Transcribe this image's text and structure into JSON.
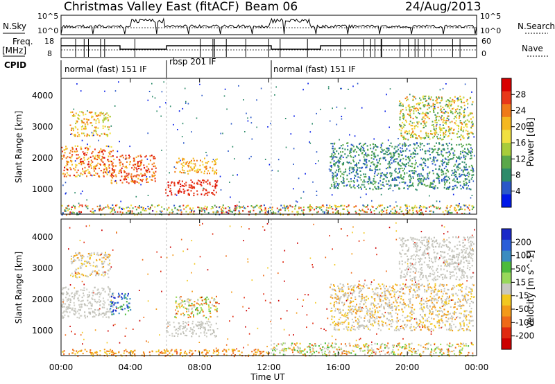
{
  "header": {
    "title": "Christmas Valley East (fitACF)",
    "beam": "Beam 06",
    "date": "24/Aug/2013"
  },
  "strip_labels": {
    "nsky": "N.Sky",
    "freq_line1": "Freq.",
    "freq_line2": "[MHz]",
    "cpid": "CPID",
    "nsearch": "N.Search",
    "nave": "Nave",
    "nsky_ticks": [
      "10^5",
      "10^0"
    ],
    "nsearch_ticks": [
      "10^5",
      "10^0"
    ],
    "freq_ticks": [
      "18",
      "8"
    ],
    "nave_ticks": [
      "60",
      "0"
    ]
  },
  "cpid_segments": [
    {
      "label": "normal (fast) 151 IF",
      "start_h": 0.0
    },
    {
      "label": "rbsp 201 IF",
      "start_h": 6.15
    },
    {
      "label": "normal (fast) 151 IF",
      "start_h": 12.0
    }
  ],
  "axes": {
    "xlabel": "Time UT",
    "ylabel_top": "Slant Range [km]",
    "ylabel_bottom": "Slant Range [km]",
    "xticks": [
      "00:00",
      "04:00",
      "08:00",
      "12:00",
      "16:00",
      "20:00",
      "00:00"
    ],
    "yticks": [
      "1000",
      "2000",
      "3000",
      "4000"
    ],
    "power_label": "Power [dB]",
    "velocity_label": "Velocity [m s^-1]"
  },
  "colorbars": {
    "power_ticks": [
      "28",
      "24",
      "20",
      "16",
      "12",
      "8",
      "4"
    ],
    "power_colors": [
      "#0018e8",
      "#2a58c8",
      "#2d8b6a",
      "#5aa84a",
      "#a8cc3a",
      "#f0e040",
      "#f5b820",
      "#f07a18",
      "#e83818",
      "#d80000"
    ],
    "velocity_ticks": [
      "200",
      "100",
      "50",
      "15",
      "-15",
      "-50",
      "-100",
      "-200"
    ],
    "velocity_colors": [
      "#1a28c8",
      "#2a5ed8",
      "#3a8cc0",
      "#4cbb3c",
      "#98d85a",
      "#c8c8c0",
      "#f2c820",
      "#f39a18",
      "#ef6a18",
      "#e02a10",
      "#cc0000"
    ]
  },
  "chart_data": [
    {
      "type": "heatmap",
      "name": "Power",
      "xlabel": "Time UT",
      "ylabel": "Slant Range [km]",
      "xlim_hours": [
        0,
        24
      ],
      "ylim_km": [
        180,
        4550
      ],
      "colorbar": {
        "label": "Power [dB]",
        "ticks": [
          4,
          8,
          12,
          16,
          20,
          24,
          28
        ]
      },
      "echo_regions": [
        {
          "hours": [
            0.0,
            3.0
          ],
          "range_km": [
            1400,
            2400
          ],
          "power_db": "16-28"
        },
        {
          "hours": [
            0.5,
            2.8
          ],
          "range_km": [
            2700,
            3500
          ],
          "power_db": "12-24"
        },
        {
          "hours": [
            2.8,
            5.5
          ],
          "range_km": [
            1200,
            2100
          ],
          "power_db": "20-28"
        },
        {
          "hours": [
            6.0,
            9.0
          ],
          "range_km": [
            800,
            1300
          ],
          "power_db": "24-28"
        },
        {
          "hours": [
            6.5,
            9.0
          ],
          "range_km": [
            1500,
            2000
          ],
          "power_db": "16-24"
        },
        {
          "hours": [
            15.5,
            23.8
          ],
          "range_km": [
            1000,
            2500
          ],
          "power_db": "4-12"
        },
        {
          "hours": [
            19.5,
            23.8
          ],
          "range_km": [
            2600,
            4000
          ],
          "power_db": "8-24"
        },
        {
          "hours": [
            0.0,
            23.8
          ],
          "range_km": [
            180,
            500
          ],
          "power_db": "4-28"
        }
      ]
    },
    {
      "type": "heatmap",
      "name": "Velocity",
      "xlabel": "Time UT",
      "ylabel": "Slant Range [km]",
      "xlim_hours": [
        0,
        24
      ],
      "ylim_km": [
        180,
        4550
      ],
      "colorbar": {
        "label": "Velocity [m s^-1]",
        "ticks": [
          200,
          100,
          50,
          15,
          -15,
          -50,
          -100,
          -200
        ]
      },
      "echo_regions": [
        {
          "hours": [
            0.0,
            3.0
          ],
          "range_km": [
            1400,
            2400
          ],
          "velocity": "-15 to 15"
        },
        {
          "hours": [
            0.5,
            2.8
          ],
          "range_km": [
            2700,
            3500
          ],
          "velocity": "-50 to 15"
        },
        {
          "hours": [
            2.8,
            4.0
          ],
          "range_km": [
            1500,
            2200
          ],
          "velocity": "50 to 200"
        },
        {
          "hours": [
            6.5,
            9.0
          ],
          "range_km": [
            1400,
            2100
          ],
          "velocity": "-100 to 50"
        },
        {
          "hours": [
            6.0,
            9.0
          ],
          "range_km": [
            800,
            1300
          ],
          "velocity": "-15 to 15"
        },
        {
          "hours": [
            15.5,
            23.8
          ],
          "range_km": [
            1000,
            2500
          ],
          "velocity": "-50 to 15"
        },
        {
          "hours": [
            19.5,
            23.8
          ],
          "range_km": [
            2600,
            4000
          ],
          "velocity": "-15 to 15"
        },
        {
          "hours": [
            0.0,
            12.0
          ],
          "range_km": [
            180,
            400
          ],
          "velocity": "-100 to -15"
        },
        {
          "hours": [
            12.0,
            23.8
          ],
          "range_km": [
            180,
            600
          ],
          "velocity": "-100 to 50"
        }
      ]
    }
  ]
}
